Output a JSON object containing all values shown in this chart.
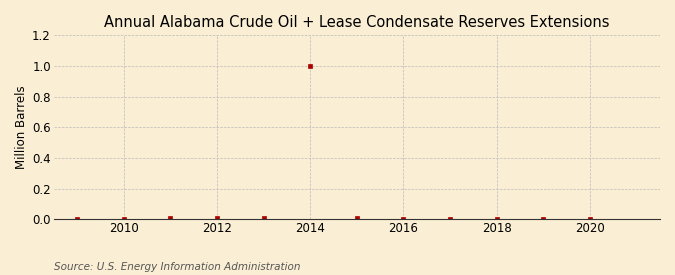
{
  "title": "Annual Alabama Crude Oil + Lease Condensate Reserves Extensions",
  "ylabel": "Million Barrels",
  "source": "Source: U.S. Energy Information Administration",
  "background_color": "#faefd4",
  "plot_bg_color": "#faefd4",
  "years": [
    2009,
    2010,
    2011,
    2012,
    2013,
    2014,
    2015,
    2016,
    2017,
    2018,
    2019,
    2020
  ],
  "values": [
    0.0,
    0.0,
    0.01,
    0.01,
    0.01,
    1.0,
    0.01,
    0.0,
    0.0,
    0.0,
    0.0,
    0.0
  ],
  "marker_color": "#aa0000",
  "grid_color": "#bbbbbb",
  "ylim": [
    0.0,
    1.2
  ],
  "yticks": [
    0.0,
    0.2,
    0.4,
    0.6,
    0.8,
    1.0,
    1.2
  ],
  "xlim": [
    2008.5,
    2021.5
  ],
  "xticks": [
    2010,
    2012,
    2014,
    2016,
    2018,
    2020
  ],
  "title_fontsize": 10.5,
  "ylabel_fontsize": 8.5,
  "tick_fontsize": 8.5,
  "source_fontsize": 7.5
}
